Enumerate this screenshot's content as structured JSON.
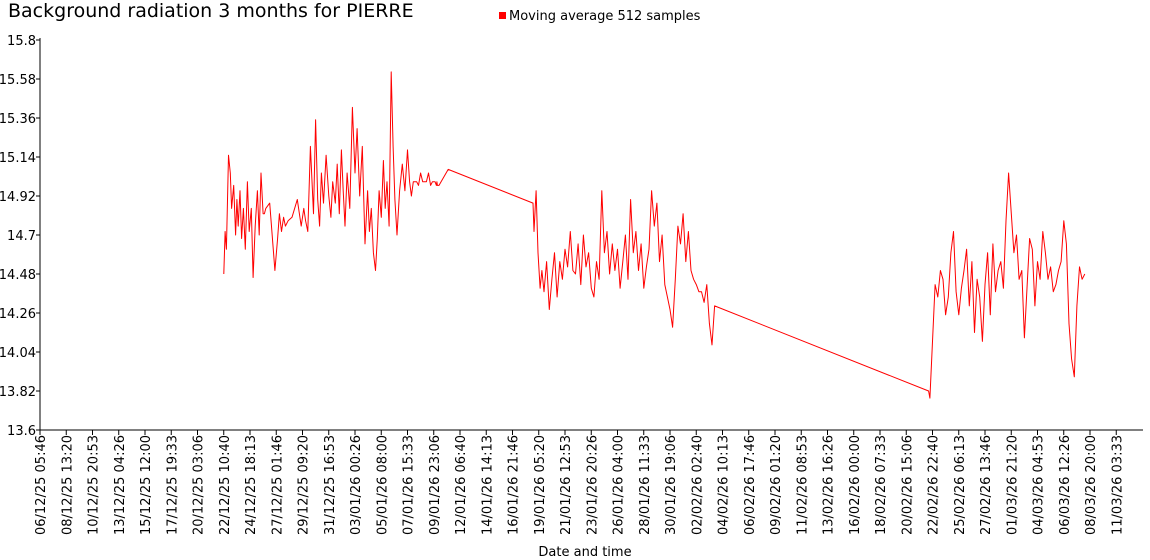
{
  "chart_data": {
    "type": "line",
    "title": "Background radiation 3 months for PIERRE",
    "xlabel": "Date and time",
    "ylabel": "",
    "ylim": [
      13.6,
      15.8
    ],
    "yticks": [
      "15.8",
      "15.58",
      "15.36",
      "15.14",
      "14.92",
      "14.7",
      "14.48",
      "14.26",
      "14.04",
      "13.82",
      "13.6"
    ],
    "xticks": [
      "06/12/25 05:46",
      "08/12/25 13:20",
      "10/12/25 20:53",
      "13/12/25 04:26",
      "15/12/25 12:00",
      "17/12/25 19:33",
      "20/12/25 03:06",
      "22/12/25 10:40",
      "24/12/25 18:13",
      "27/12/25 01:46",
      "29/12/25 09:20",
      "31/12/25 16:53",
      "03/01/26 00:26",
      "05/01/26 08:00",
      "07/01/26 15:33",
      "09/01/26 23:06",
      "12/01/26 06:40",
      "14/01/26 14:13",
      "16/01/26 21:46",
      "19/01/26 05:20",
      "21/01/26 12:53",
      "23/01/26 20:26",
      "26/01/26 04:00",
      "28/01/26 11:33",
      "30/01/26 19:06",
      "02/02/26 02:40",
      "04/02/26 10:13",
      "06/02/26 17:46",
      "09/02/26 01:20",
      "11/02/26 08:53",
      "13/02/26 16:26",
      "16/02/26 00:00",
      "18/02/26 07:33",
      "20/02/26 15:06",
      "22/02/26 22:40",
      "25/02/26 06:13",
      "27/02/26 13:46",
      "01/03/26 21:20",
      "04/03/26 04:53",
      "06/03/26 12:26",
      "08/03/26 20:00",
      "11/03/26 03:33"
    ],
    "series": [
      {
        "name": "Moving average 512 samples",
        "color": "#ff0000",
        "x_tick_index": [
          7.0,
          7.05,
          7.1,
          7.18,
          7.25,
          7.3,
          7.38,
          7.45,
          7.5,
          7.55,
          7.62,
          7.68,
          7.75,
          7.82,
          7.9,
          7.97,
          8.05,
          8.12,
          8.2,
          8.28,
          8.35,
          8.42,
          8.5,
          8.55,
          8.6,
          8.75,
          8.95,
          9.05,
          9.12,
          9.2,
          9.28,
          9.35,
          9.45,
          9.6,
          9.8,
          9.95,
          10.05,
          10.12,
          10.2,
          10.3,
          10.42,
          10.5,
          10.58,
          10.65,
          10.72,
          10.8,
          10.9,
          11.0,
          11.08,
          11.15,
          11.25,
          11.32,
          11.4,
          11.48,
          11.55,
          11.62,
          11.7,
          11.8,
          11.9,
          12.0,
          12.08,
          12.18,
          12.28,
          12.38,
          12.48,
          12.55,
          12.62,
          12.7,
          12.78,
          12.85,
          12.92,
          13.0,
          13.08,
          13.15,
          13.22,
          13.3,
          13.38,
          13.45,
          13.52,
          13.6,
          13.7,
          13.8,
          13.9,
          14.0,
          14.08,
          14.15,
          14.22,
          14.3,
          14.35,
          14.42,
          14.5,
          14.58,
          14.65,
          14.72,
          14.8,
          14.88,
          14.95,
          15.05,
          15.1,
          15.12,
          15.14,
          15.2,
          15.55,
          18.78,
          18.82,
          18.9,
          18.97,
          19.05,
          19.12,
          19.2,
          19.3,
          19.4,
          19.5,
          19.6,
          19.7,
          19.8,
          19.9,
          20.0,
          20.1,
          20.2,
          20.3,
          20.4,
          20.5,
          20.6,
          20.7,
          20.8,
          20.9,
          21.0,
          21.1,
          21.2,
          21.3,
          21.4,
          21.5,
          21.6,
          21.7,
          21.8,
          21.9,
          22.0,
          22.1,
          22.2,
          22.3,
          22.4,
          22.5,
          22.6,
          22.7,
          22.8,
          22.9,
          23.0,
          23.1,
          23.2,
          23.3,
          23.4,
          23.5,
          23.6,
          23.7,
          23.8,
          23.9,
          24.0,
          24.1,
          24.2,
          24.3,
          24.4,
          24.5,
          24.6,
          24.7,
          24.8,
          24.9,
          25.0,
          25.1,
          25.2,
          25.3,
          25.4,
          25.5,
          25.6,
          25.7,
          33.85,
          33.9,
          34.0,
          34.1,
          34.2,
          34.3,
          34.4,
          34.5,
          34.6,
          34.7,
          34.8,
          34.9,
          35.0,
          35.1,
          35.2,
          35.3,
          35.4,
          35.5,
          35.6,
          35.7,
          35.8,
          35.9,
          36.0,
          36.1,
          36.2,
          36.3,
          36.4,
          36.5,
          36.6,
          36.7,
          36.8,
          36.9,
          37.0,
          37.1,
          37.2,
          37.3,
          37.4,
          37.5,
          37.6,
          37.7,
          37.8,
          37.9,
          38.0,
          38.1,
          38.2,
          38.3,
          38.4,
          38.5,
          38.6,
          38.7,
          38.8,
          38.9,
          39.0,
          39.1,
          39.2,
          39.3,
          39.4,
          39.5,
          39.6,
          39.7,
          39.8,
          39.9,
          40.0,
          40.05
        ],
        "values": [
          14.48,
          14.72,
          14.62,
          15.15,
          15.05,
          14.85,
          14.98,
          14.7,
          14.9,
          14.75,
          14.95,
          14.68,
          14.85,
          14.62,
          15.0,
          14.72,
          14.85,
          14.46,
          14.75,
          14.95,
          14.7,
          15.05,
          14.82,
          14.82,
          14.85,
          14.88,
          14.5,
          14.68,
          14.82,
          14.72,
          14.8,
          14.75,
          14.78,
          14.8,
          14.9,
          14.75,
          14.85,
          14.78,
          14.72,
          15.2,
          14.82,
          15.35,
          14.9,
          14.75,
          15.05,
          14.88,
          15.15,
          14.92,
          14.8,
          15.0,
          14.88,
          15.1,
          14.82,
          15.18,
          14.95,
          14.75,
          15.05,
          14.85,
          15.42,
          15.05,
          15.3,
          14.92,
          15.2,
          14.65,
          14.95,
          14.72,
          14.85,
          14.6,
          14.5,
          14.68,
          14.95,
          14.8,
          15.12,
          14.85,
          15.0,
          14.75,
          15.62,
          15.2,
          14.9,
          14.7,
          14.95,
          15.1,
          14.95,
          15.18,
          15.0,
          14.92,
          15.0,
          15.0,
          15.0,
          14.98,
          15.05,
          15.0,
          15.0,
          15.0,
          15.05,
          14.98,
          15.0,
          15.0,
          14.98,
          15.0,
          14.98,
          14.98,
          15.07,
          14.88,
          14.72,
          14.95,
          14.6,
          14.4,
          14.5,
          14.38,
          14.55,
          14.28,
          14.45,
          14.6,
          14.35,
          14.55,
          14.45,
          14.62,
          14.52,
          14.72,
          14.5,
          14.48,
          14.65,
          14.42,
          14.7,
          14.52,
          14.6,
          14.4,
          14.35,
          14.55,
          14.45,
          14.95,
          14.6,
          14.72,
          14.48,
          14.65,
          14.5,
          14.62,
          14.4,
          14.55,
          14.7,
          14.45,
          14.9,
          14.6,
          14.72,
          14.5,
          14.65,
          14.4,
          14.52,
          14.62,
          14.95,
          14.75,
          14.88,
          14.55,
          14.7,
          14.42,
          14.35,
          14.28,
          14.18,
          14.45,
          14.75,
          14.65,
          14.82,
          14.55,
          14.72,
          14.5,
          14.45,
          14.42,
          14.38,
          14.38,
          14.32,
          14.42,
          14.2,
          14.08,
          14.3,
          13.82,
          13.78,
          14.1,
          14.42,
          14.35,
          14.5,
          14.45,
          14.25,
          14.35,
          14.6,
          14.72,
          14.38,
          14.25,
          14.4,
          14.5,
          14.62,
          14.3,
          14.55,
          14.15,
          14.45,
          14.35,
          14.1,
          14.42,
          14.6,
          14.25,
          14.65,
          14.38,
          14.5,
          14.55,
          14.4,
          14.78,
          15.05,
          14.82,
          14.6,
          14.7,
          14.45,
          14.5,
          14.12,
          14.4,
          14.68,
          14.62,
          14.3,
          14.55,
          14.45,
          14.72,
          14.6,
          14.45,
          14.52,
          14.38,
          14.42,
          14.5,
          14.55,
          14.78,
          14.65,
          14.2,
          14.0,
          13.9,
          14.3,
          14.52,
          14.45,
          14.48
        ]
      }
    ]
  }
}
